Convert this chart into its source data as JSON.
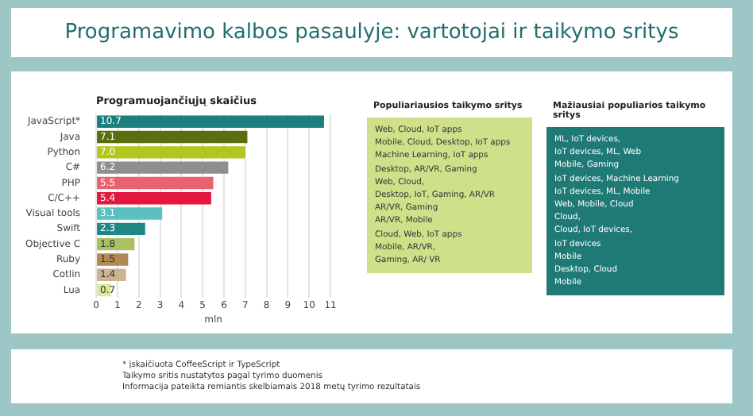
{
  "chart_data": [
    {
      "type": "bar",
      "orientation": "horizontal",
      "title": "Programavimo kalbos pasaulyje: vartotojai ir taikymo sritys",
      "subtitle": "Programuojančiųjų skaičius",
      "xlabel": "mln",
      "categories": [
        "JavaScript*",
        "Java",
        "Python",
        "C#",
        "PHP",
        "C/C++",
        "Visual tools",
        "Swift",
        "Objective C",
        "Ruby",
        "Cotlin",
        "Lua"
      ],
      "values": [
        10.7,
        7.1,
        7.0,
        6.2,
        5.5,
        5.4,
        3.1,
        2.3,
        1.8,
        1.5,
        1.4,
        0.7
      ],
      "colors": [
        "#1c7f7b",
        "#5b6f12",
        "#b3c61c",
        "#8e8e8e",
        "#e9636f",
        "#e3173f",
        "#5cc0c1",
        "#1f8886",
        "#a9c162",
        "#b08a52",
        "#cbb391",
        "#dbe99a"
      ],
      "value_labels": [
        "10.7",
        "7.1",
        "7.0",
        "6.2",
        "5.5",
        "5.4",
        "3.1",
        "2.3",
        "1.8",
        "1.5",
        "1.4",
        "0.7"
      ],
      "xlim": [
        0,
        11
      ],
      "xticks": [
        0,
        1,
        2,
        3,
        4,
        5,
        6,
        7,
        8,
        9,
        10,
        11
      ],
      "grid": "x",
      "annotations": [
        "* įskaičiuota CoffeeScript ir TypeScript",
        "Taikymo sritis nustatytos pagal tyrimo duomenis",
        "Informacija pateikta remiantis skelbiamais 2018 metų tyrimo rezultatais"
      ]
    },
    {
      "type": "other",
      "title": "Populiariausios taikymo sritys",
      "color": "#cfe08a",
      "annotations": [
        "Web, Cloud, IoT apps",
        "Mobile, Cloud, Desktop,  IoT apps",
        "Machine Learning, IoT apps",
        "Desktop, AR/VR, Gaming",
        "Web, Cloud,",
        "Desktop, IoT, Gaming, AR/VR",
        "AR/VR, Gaming",
        "AR/VR, Mobile",
        "Cloud, Web, IoT apps",
        "Mobile, AR/VR,",
        "Gaming, AR/ VR"
      ]
    },
    {
      "type": "other",
      "title": "Mažiausiai populiarios taikymo sritys",
      "color": "#1f7a76",
      "annotations": [
        "ML, IoT devices,",
        "IoT devices, ML, Web",
        "Mobile, Gaming",
        "IoT devices, Machine Learning",
        "IoT devices, ML, Mobile",
        "Web, Mobile, Cloud",
        "Cloud,",
        "Cloud, IoT devices,",
        "IoT devices",
        "Mobile",
        "Desktop, Cloud",
        "Mobile"
      ]
    }
  ]
}
